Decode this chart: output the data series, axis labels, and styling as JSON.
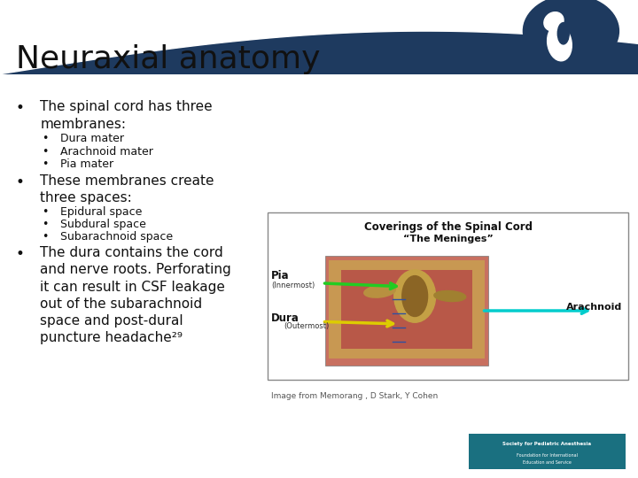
{
  "title": "Neuraxial anatomy",
  "title_fontsize": 26,
  "header_bg_color": "#1e3a5f",
  "slide_bg": "#ffffff",
  "bullet1_main": "The spinal cord has three\nmembranes:",
  "bullet1_sub": [
    "Dura mater",
    "Arachnoid mater",
    "Pia mater"
  ],
  "bullet2_main": "These membranes create\nthree spaces:",
  "bullet2_sub": [
    "Epidural space",
    "Subdural space",
    "Subarachnoid space"
  ],
  "bullet3_main": "The dura contains the cord\nand nerve roots. Perforating\nit can result in CSF leakage\nout of the subarachnoid\nspace and post-dural\npuncture headache²⁹",
  "image_caption": "Image from Memorang , D Stark, Y Cohen",
  "text_color": "#111111",
  "img_box_title1": "Coverings of the Spinal Cord",
  "img_box_title2": "“The Meninges”",
  "label_pia": "Pia",
  "label_pia_sub": "(Innermost)",
  "label_dura": "Dura",
  "label_dura_sub": "(Outermost)",
  "label_arachnoid": "Arachnoid",
  "logo_bg": "#1a7080"
}
